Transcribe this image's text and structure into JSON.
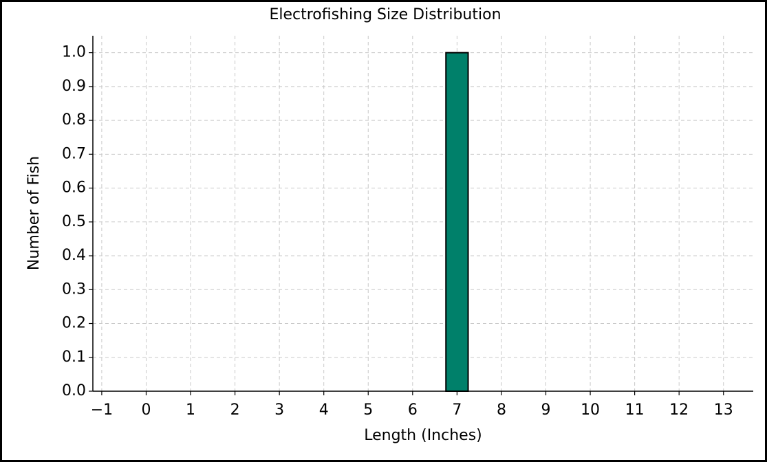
{
  "chart_data": {
    "type": "histogram",
    "title": "Electrofishing Size Distribution",
    "xlabel": "Length (Inches)",
    "ylabel": "Number of Fish",
    "bins": [
      6.75,
      7.25
    ],
    "values": [
      1
    ],
    "color": "#00806a",
    "edgecolor": "#000000",
    "xlim": [
      -1.2,
      13.67
    ],
    "ylim": [
      0,
      1.05
    ],
    "xticks": [
      {
        "value": -1,
        "label": "−1"
      },
      0,
      1,
      2,
      3,
      4,
      5,
      6,
      7,
      8,
      9,
      10,
      11,
      12,
      13
    ],
    "yticks": [
      {
        "value": 0,
        "label": "0.0"
      },
      0.1,
      0.2,
      0.3,
      0.4,
      0.5,
      0.6,
      0.7,
      0.8,
      0.9,
      {
        "value": 1,
        "label": "1.0"
      }
    ],
    "grid": true
  }
}
